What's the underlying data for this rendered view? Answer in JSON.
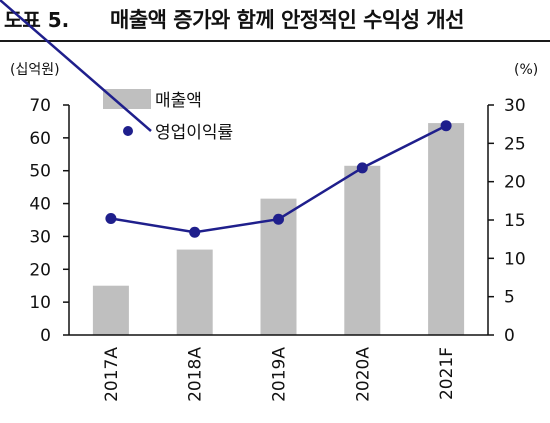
{
  "header": {
    "figure_label": "도표 5.",
    "title": "매출액 증가와 함께 안정적인 수익성 개선"
  },
  "chart_data": {
    "type": "bar+line",
    "categories": [
      "2017A",
      "2018A",
      "2019A",
      "2020A",
      "2021F"
    ],
    "series": [
      {
        "name": "매출액",
        "type": "bar",
        "axis": "left",
        "values": [
          15,
          26,
          41.5,
          51.5,
          64.5
        ],
        "color": "#bfbfbf"
      },
      {
        "name": "영업이익률",
        "type": "line",
        "axis": "right",
        "values": [
          15.2,
          13.4,
          15.1,
          21.8,
          27.3
        ],
        "color": "#1f1f8c"
      }
    ],
    "y_left": {
      "unit": "(십억원)",
      "ylim": [
        0,
        70
      ],
      "ticks": [
        0,
        10,
        20,
        30,
        40,
        50,
        60,
        70
      ]
    },
    "y_right": {
      "unit": "(%)",
      "ylim": [
        0,
        30
      ],
      "ticks": [
        0,
        5,
        10,
        15,
        20,
        25,
        30
      ]
    },
    "grid": false,
    "legend_position": "top-left"
  }
}
